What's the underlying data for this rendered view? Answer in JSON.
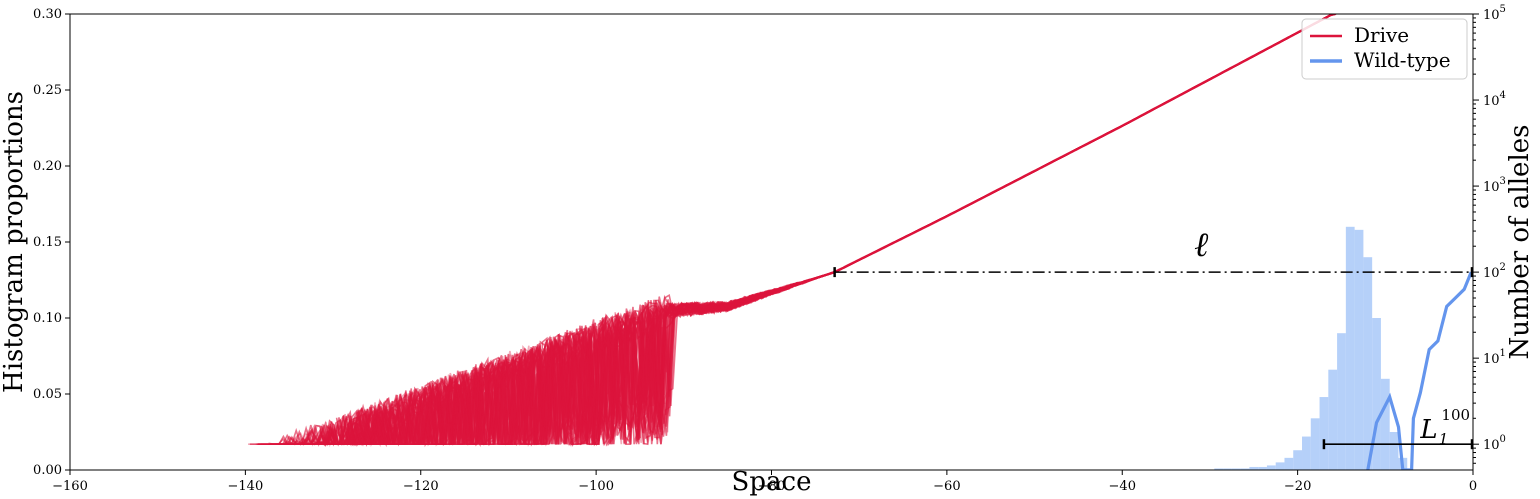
{
  "chart_data": {
    "type": "line",
    "xlabel": "Space",
    "ylabel": "Histogram proportions",
    "y2label": "Number of alleles",
    "xlim": [
      -160,
      0
    ],
    "ylim": [
      0,
      0.3
    ],
    "y2lim_log10": [
      -0.3,
      5
    ],
    "y2scale": "log",
    "x_ticks": [
      "−160",
      "−140",
      "−120",
      "−100",
      "−80",
      "−60",
      "−40",
      "−20",
      "0"
    ],
    "y_ticks": [
      "0.00",
      "0.05",
      "0.10",
      "0.15",
      "0.20",
      "0.25",
      "0.30"
    ],
    "y2_ticks": [
      {
        "base": "10",
        "exp": "0"
      },
      {
        "base": "10",
        "exp": "1"
      },
      {
        "base": "10",
        "exp": "2"
      },
      {
        "base": "10",
        "exp": "3"
      },
      {
        "base": "10",
        "exp": "4"
      },
      {
        "base": "10",
        "exp": "5"
      }
    ],
    "legend": {
      "position": "top-right",
      "entries": [
        {
          "label": "Drive",
          "color": "#dc143c"
        },
        {
          "label": "Wild-type",
          "color": "#6495ed"
        }
      ]
    },
    "drive_trend_log10": [
      {
        "x": -92,
        "y": 1.55
      },
      {
        "x": -85,
        "y": 1.6
      },
      {
        "x": -72.8,
        "y": 2.0
      },
      {
        "x": -60,
        "y": 2.65
      },
      {
        "x": -40,
        "y": 3.7
      },
      {
        "x": -16,
        "y": 5.0
      }
    ],
    "drive_noisy_range": {
      "x_start": -140,
      "x_end": -91
    },
    "drive_floor_value": 1,
    "wildtype_log10": [
      {
        "x": -12,
        "y": -0.3
      },
      {
        "x": -11,
        "y": 0.25
      },
      {
        "x": -9.5,
        "y": 0.55
      },
      {
        "x": -8.5,
        "y": 0.2
      },
      {
        "x": -8,
        "y": -0.3
      },
      {
        "x": -7,
        "y": -0.3
      },
      {
        "x": -6.8,
        "y": 0.3
      },
      {
        "x": -6,
        "y": 0.6
      },
      {
        "x": -5,
        "y": 1.1
      },
      {
        "x": -4,
        "y": 1.2
      },
      {
        "x": -3,
        "y": 1.6
      },
      {
        "x": -2,
        "y": 1.7
      },
      {
        "x": -1,
        "y": 1.8
      },
      {
        "x": -0.2,
        "y": 2.0
      }
    ],
    "histogram": {
      "color": "#a8c8f8",
      "bin_width": 1,
      "bins": [
        {
          "x": -29,
          "y": 0.001
        },
        {
          "x": -28,
          "y": 0.001
        },
        {
          "x": -27,
          "y": 0.001
        },
        {
          "x": -26,
          "y": 0.001
        },
        {
          "x": -25,
          "y": 0.002
        },
        {
          "x": -24,
          "y": 0.002
        },
        {
          "x": -23,
          "y": 0.003
        },
        {
          "x": -22,
          "y": 0.005
        },
        {
          "x": -21,
          "y": 0.008
        },
        {
          "x": -20,
          "y": 0.013
        },
        {
          "x": -19,
          "y": 0.022
        },
        {
          "x": -18,
          "y": 0.034
        },
        {
          "x": -17,
          "y": 0.048
        },
        {
          "x": -16,
          "y": 0.066
        },
        {
          "x": -15,
          "y": 0.09
        },
        {
          "x": -14,
          "y": 0.16
        },
        {
          "x": -13,
          "y": 0.158
        },
        {
          "x": -12,
          "y": 0.14
        },
        {
          "x": -11,
          "y": 0.1
        },
        {
          "x": -10,
          "y": 0.06
        },
        {
          "x": -9,
          "y": 0.025
        },
        {
          "x": -8,
          "y": 0.008
        }
      ]
    },
    "annotations": {
      "ell": {
        "label": "ℓ",
        "x_start": -72.8,
        "x_end": 0,
        "y_log10": 2.0,
        "style": "dash-dot"
      },
      "L": {
        "label": "L",
        "sub": "1",
        "sup": "100",
        "x_start": -17,
        "x_end": 0,
        "y_log10": 0
      }
    }
  }
}
